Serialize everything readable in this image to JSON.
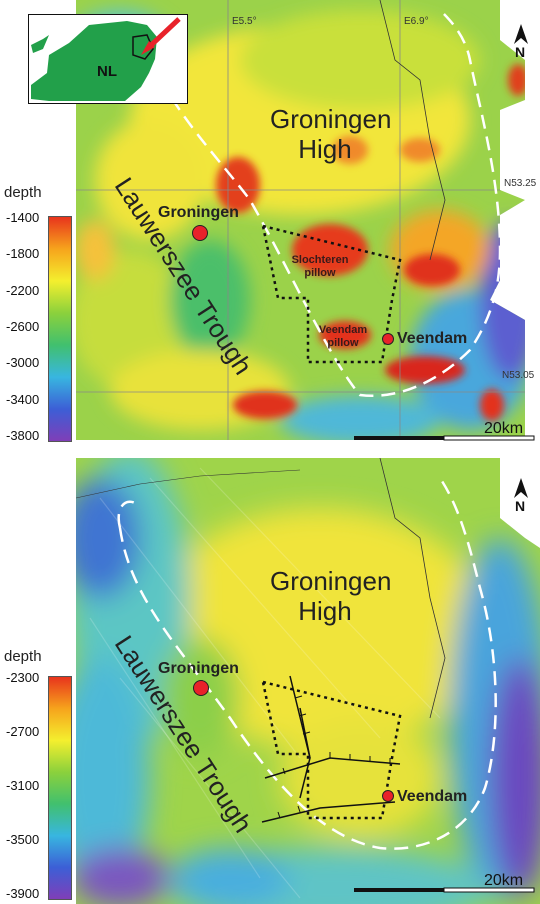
{
  "top_panel": {
    "colorbar": {
      "title": "depth",
      "ticks": [
        "-1400",
        "-1800",
        "-2200",
        "-2600",
        "-3000",
        "-3400",
        "-3800"
      ],
      "colors": [
        "#e8341c",
        "#f6a41c",
        "#f4ef2e",
        "#8bd13c",
        "#41c06e",
        "#38b6e0",
        "#3c5fd6",
        "#7f3fb8"
      ]
    },
    "labels": {
      "high": "Groningen High",
      "trough": "Lauwerszee Trough",
      "groningen": "Groningen",
      "veendam": "Veendam",
      "slochteren_pillow": "Slochteren pillow",
      "veendam_pillow": "Veendam pillow"
    },
    "coords": {
      "e55": "E5.5°",
      "e69": "E6.9°",
      "n5325": "N53.25",
      "n5305": "N53.05"
    },
    "scale": "20km",
    "north": "N",
    "inset_label": "NL"
  },
  "bottom_panel": {
    "colorbar": {
      "title": "depth",
      "ticks": [
        "-2300",
        "-2700",
        "-3100",
        "-3500",
        "-3900"
      ],
      "colors": [
        "#e8341c",
        "#f6a41c",
        "#f4ef2e",
        "#8bd13c",
        "#41c06e",
        "#38b6e0",
        "#3c5fd6",
        "#7f3fb8"
      ]
    },
    "labels": {
      "high": "Groningen High",
      "trough": "Lauwerszee Trough",
      "groningen": "Groningen",
      "veendam": "Veendam"
    },
    "scale": "20km",
    "north": "N"
  }
}
